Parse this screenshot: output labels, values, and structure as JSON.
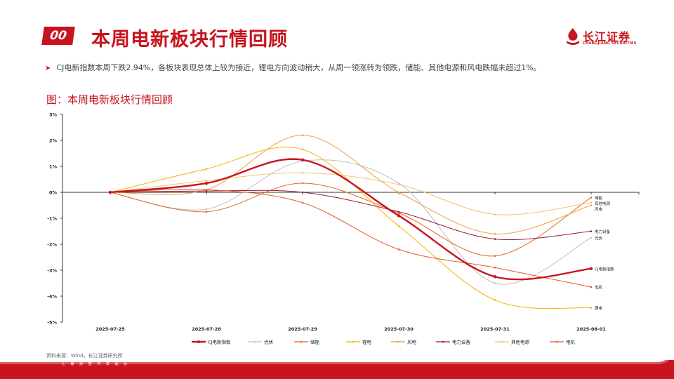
{
  "header": {
    "badge": "00",
    "title": "本周电新板块行情回顾",
    "logo_cn": "长江证券",
    "logo_en": "CHANGJIANG SECURITIES"
  },
  "bullet": "CJ电新指数本周下跌2.94%，各板块表现总体上较为接近，锂电方向波动稍大，从周一领涨转为领跌，储能、其他电源和风电跌幅未超过1%。",
  "subtitle": "图：本周电新板块行情回顾",
  "source": "资料来源：Wind，长江证券研究所",
  "footer_slogan": "汇 聚 财 智    共 享 成 长",
  "colors": {
    "brand_red": "#c8141e"
  },
  "chart_data": {
    "type": "line",
    "categories": [
      "2025-07-25",
      "2025-07-28",
      "2025-07-29",
      "2025-07-30",
      "2025-07-31",
      "2025-08-01"
    ],
    "ylim": [
      -5,
      3
    ],
    "yticks": [
      3,
      2,
      1,
      0,
      -1,
      -2,
      -3,
      -4,
      -5
    ],
    "ytick_labels": [
      "3%",
      "2%",
      "1%",
      "0%",
      "-1%",
      "-2%",
      "-3%",
      "-4%",
      "-5%"
    ],
    "unit": "%",
    "legend_position": "bottom",
    "series": [
      {
        "name": "CJ电新指数",
        "color": "#c8141e",
        "bold": true,
        "values": [
          0,
          0.35,
          1.25,
          -0.9,
          -3.25,
          -2.94
        ],
        "end_label": "CJ电新指数"
      },
      {
        "name": "光伏",
        "color": "#c0c0c0",
        "values": [
          0,
          -0.65,
          1.2,
          0.35,
          -3.5,
          -1.75
        ],
        "end_label": "光伏"
      },
      {
        "name": "储能",
        "color": "#e06a1a",
        "values": [
          0,
          -0.75,
          0.35,
          -0.8,
          -2.45,
          -0.2
        ],
        "end_label": "储能"
      },
      {
        "name": "锂电",
        "color": "#f5b400",
        "values": [
          0,
          0.9,
          1.65,
          -1.3,
          -4.15,
          -4.45
        ],
        "end_label": "锂电"
      },
      {
        "name": "风电",
        "color": "#f0a040",
        "values": [
          0,
          0.1,
          2.2,
          0.0,
          -1.6,
          -0.5
        ],
        "end_label": "风电"
      },
      {
        "name": "电力设备",
        "color": "#9c1a3a",
        "values": [
          0,
          0.05,
          0.0,
          -0.75,
          -1.8,
          -1.5
        ],
        "end_label": "电力设备"
      },
      {
        "name": "其他电源",
        "color": "#f2c27a",
        "values": [
          0,
          0.45,
          0.75,
          0.3,
          -0.85,
          -0.4
        ],
        "end_label": "其他电源"
      },
      {
        "name": "电机",
        "color": "#e05a2a",
        "values": [
          0,
          0.1,
          -0.4,
          -2.2,
          -2.9,
          -3.65
        ],
        "end_label": "电机"
      }
    ]
  }
}
